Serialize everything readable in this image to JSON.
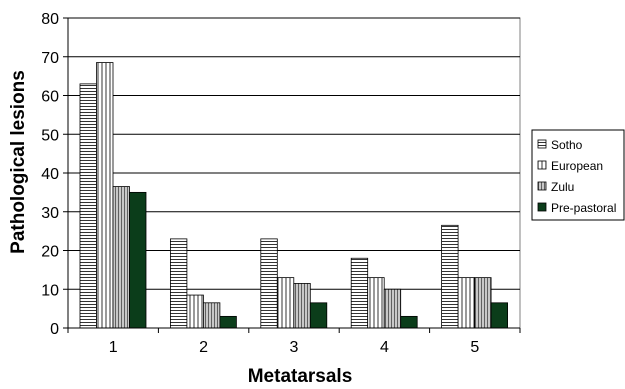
{
  "chart_data": {
    "type": "bar",
    "title": "",
    "xlabel": "Metatarsals",
    "ylabel": "Pathological lesions",
    "categories": [
      "1",
      "2",
      "3",
      "4",
      "5"
    ],
    "ylim": [
      0,
      80
    ],
    "yticks": [
      0,
      10,
      20,
      30,
      40,
      50,
      60,
      70,
      80
    ],
    "grid": true,
    "legend_position": "right",
    "series": [
      {
        "name": "Sotho",
        "values": [
          63,
          23,
          23,
          18,
          26.5
        ],
        "pattern": "horizontal-lines",
        "color": "#ffffff"
      },
      {
        "name": "European",
        "values": [
          68.5,
          8.5,
          13,
          13,
          13
        ],
        "pattern": "vertical-lines",
        "color": "#ffffff"
      },
      {
        "name": "Zulu",
        "values": [
          36.5,
          6.5,
          11.5,
          10,
          13
        ],
        "pattern": "dense-vertical-lines",
        "color": "#bfbfbf"
      },
      {
        "name": "Pre-pastoral",
        "values": [
          35,
          3,
          6.5,
          3,
          6.5
        ],
        "pattern": "solid",
        "color": "#0b3d1a"
      }
    ]
  }
}
